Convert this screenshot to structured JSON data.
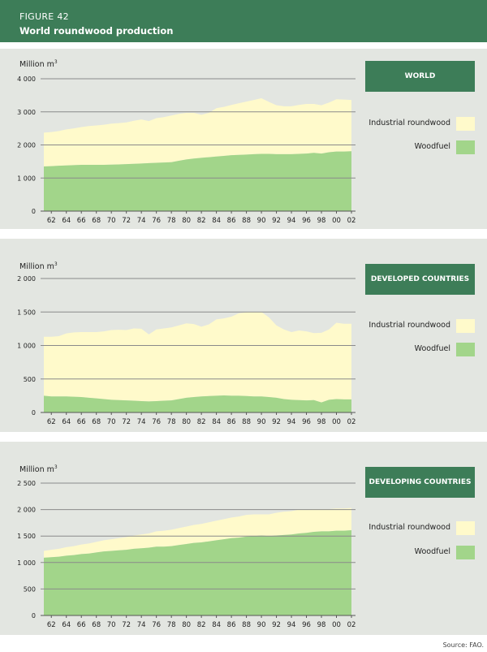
{
  "header": {
    "figure_label": "FIGURE 42",
    "title": "World roundwood production"
  },
  "unit": {
    "text": "Million m",
    "sup": "3"
  },
  "legend": {
    "industrial": "Industrial roundwood",
    "woodfuel": "Woodfuel"
  },
  "colors": {
    "header": "#3d7d58",
    "panel_bg": "#e3e6e1",
    "industrial": "#fffacb",
    "woodfuel": "#a2d58a",
    "grid": "#8a8a8a"
  },
  "source": "Source: FAO.",
  "chart_data": [
    {
      "type": "area",
      "title": "WORLD",
      "ylabel": "Million m3",
      "ylim": [
        0,
        4000
      ],
      "yticks": [
        0,
        1000,
        2000,
        3000,
        4000
      ],
      "ytick_labels": [
        "0",
        "1 000",
        "2 000",
        "3 000",
        "4 000"
      ],
      "x": [
        1961,
        1962,
        1963,
        1964,
        1965,
        1966,
        1967,
        1968,
        1969,
        1970,
        1971,
        1972,
        1973,
        1974,
        1975,
        1976,
        1977,
        1978,
        1979,
        1980,
        1981,
        1982,
        1983,
        1984,
        1985,
        1986,
        1987,
        1988,
        1989,
        1990,
        1991,
        1992,
        1993,
        1994,
        1995,
        1996,
        1997,
        1998,
        1999,
        2000,
        2001,
        2002
      ],
      "xtick_labels": [
        "62",
        "64",
        "66",
        "68",
        "70",
        "72",
        "74",
        "76",
        "78",
        "80",
        "82",
        "84",
        "86",
        "88",
        "90",
        "92",
        "94",
        "96",
        "98",
        "00",
        "02"
      ],
      "series": [
        {
          "name": "Woodfuel",
          "values": [
            1350,
            1360,
            1370,
            1380,
            1390,
            1400,
            1400,
            1400,
            1400,
            1405,
            1410,
            1420,
            1430,
            1440,
            1450,
            1460,
            1470,
            1480,
            1520,
            1560,
            1590,
            1610,
            1630,
            1650,
            1670,
            1690,
            1700,
            1710,
            1720,
            1730,
            1730,
            1720,
            1720,
            1720,
            1730,
            1740,
            1760,
            1740,
            1780,
            1800,
            1800,
            1810
          ]
        },
        {
          "name": "Industrial roundwood",
          "values": [
            1020,
            1030,
            1050,
            1090,
            1110,
            1140,
            1170,
            1190,
            1210,
            1240,
            1250,
            1260,
            1300,
            1330,
            1270,
            1350,
            1370,
            1410,
            1420,
            1410,
            1380,
            1300,
            1340,
            1460,
            1480,
            1520,
            1560,
            1600,
            1640,
            1680,
            1570,
            1480,
            1450,
            1450,
            1480,
            1500,
            1480,
            1460,
            1500,
            1580,
            1570,
            1550
          ]
        }
      ]
    },
    {
      "type": "area",
      "title": "DEVELOPED COUNTRIES",
      "ylabel": "Million m3",
      "ylim": [
        0,
        2000
      ],
      "yticks": [
        0,
        500,
        1000,
        1500,
        2000
      ],
      "ytick_labels": [
        "0",
        "500",
        "1 000",
        "1 500",
        "2 000"
      ],
      "x": [
        1961,
        1962,
        1963,
        1964,
        1965,
        1966,
        1967,
        1968,
        1969,
        1970,
        1971,
        1972,
        1973,
        1974,
        1975,
        1976,
        1977,
        1978,
        1979,
        1980,
        1981,
        1982,
        1983,
        1984,
        1985,
        1986,
        1987,
        1988,
        1989,
        1990,
        1991,
        1992,
        1993,
        1994,
        1995,
        1996,
        1997,
        1998,
        1999,
        2000,
        2001,
        2002
      ],
      "xtick_labels": [
        "62",
        "64",
        "66",
        "68",
        "70",
        "72",
        "74",
        "76",
        "78",
        "80",
        "82",
        "84",
        "86",
        "88",
        "90",
        "92",
        "94",
        "96",
        "98",
        "00",
        "02"
      ],
      "series": [
        {
          "name": "Woodfuel",
          "values": [
            250,
            240,
            240,
            240,
            235,
            230,
            220,
            210,
            200,
            190,
            185,
            180,
            175,
            170,
            165,
            170,
            175,
            180,
            200,
            220,
            230,
            240,
            245,
            250,
            255,
            250,
            250,
            245,
            240,
            240,
            230,
            220,
            200,
            190,
            185,
            180,
            185,
            150,
            190,
            200,
            195,
            195
          ]
        },
        {
          "name": "Industrial roundwood",
          "values": [
            880,
            890,
            900,
            940,
            960,
            970,
            980,
            990,
            1010,
            1040,
            1050,
            1050,
            1080,
            1080,
            1000,
            1070,
            1080,
            1090,
            1100,
            1110,
            1090,
            1040,
            1070,
            1140,
            1150,
            1180,
            1230,
            1250,
            1260,
            1260,
            1190,
            1080,
            1040,
            1010,
            1040,
            1030,
            1000,
            1040,
            1050,
            1140,
            1130,
            1130
          ]
        }
      ]
    },
    {
      "type": "area",
      "title": "DEVELOPING COUNTRIES",
      "ylabel": "Million m3",
      "ylim": [
        0,
        2500
      ],
      "yticks": [
        0,
        500,
        1000,
        1500,
        2000,
        2500
      ],
      "ytick_labels": [
        "0",
        "500",
        "1 000",
        "1 500",
        "2 000",
        "2 500"
      ],
      "x": [
        1961,
        1962,
        1963,
        1964,
        1965,
        1966,
        1967,
        1968,
        1969,
        1970,
        1971,
        1972,
        1973,
        1974,
        1975,
        1976,
        1977,
        1978,
        1979,
        1980,
        1981,
        1982,
        1983,
        1984,
        1985,
        1986,
        1987,
        1988,
        1989,
        1990,
        1991,
        1992,
        1993,
        1994,
        1995,
        1996,
        1997,
        1998,
        1999,
        2000,
        2001,
        2002
      ],
      "xtick_labels": [
        "62",
        "64",
        "66",
        "68",
        "70",
        "72",
        "74",
        "76",
        "78",
        "80",
        "82",
        "84",
        "86",
        "88",
        "90",
        "92",
        "94",
        "96",
        "98",
        "00",
        "02"
      ],
      "series": [
        {
          "name": "Woodfuel",
          "values": [
            1090,
            1100,
            1110,
            1130,
            1140,
            1160,
            1170,
            1190,
            1210,
            1220,
            1230,
            1240,
            1260,
            1270,
            1280,
            1300,
            1300,
            1310,
            1330,
            1350,
            1370,
            1380,
            1400,
            1420,
            1440,
            1460,
            1470,
            1490,
            1500,
            1510,
            1500,
            1510,
            1520,
            1530,
            1550,
            1560,
            1580,
            1590,
            1590,
            1600,
            1600,
            1610
          ]
        },
        {
          "name": "Industrial roundwood",
          "values": [
            130,
            140,
            150,
            160,
            170,
            180,
            190,
            200,
            210,
            220,
            230,
            240,
            250,
            260,
            270,
            290,
            300,
            310,
            320,
            330,
            340,
            350,
            360,
            370,
            380,
            390,
            400,
            410,
            410,
            400,
            410,
            430,
            440,
            440,
            450,
            440,
            430,
            420,
            420,
            420,
            420,
            420
          ]
        }
      ]
    }
  ]
}
